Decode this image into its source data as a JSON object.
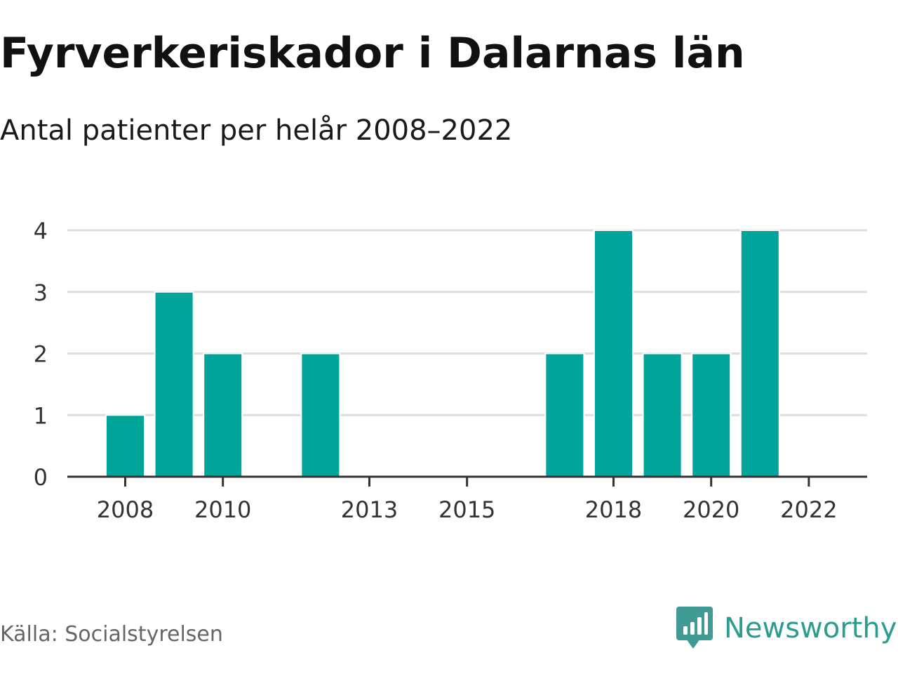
{
  "title": "Fyrverkeriskador i Dalarnas län",
  "subtitle": "Antal patienter per helår 2008–2022",
  "source": "Källa: Socialstyrelsen",
  "brand": {
    "name": "Newsworthy",
    "icon": "newsworthy-logo-icon",
    "color": "#2a9d8f"
  },
  "colors": {
    "bar": "#00a499",
    "grid": "#dddddd",
    "axis": "#333333"
  },
  "chart_data": {
    "type": "bar",
    "title": "Fyrverkeriskador i Dalarnas län",
    "subtitle": "Antal patienter per helår 2008–2022",
    "xlabel": "",
    "ylabel": "",
    "x": [
      2008,
      2009,
      2010,
      2011,
      2012,
      2013,
      2014,
      2015,
      2016,
      2017,
      2018,
      2019,
      2020,
      2021,
      2022
    ],
    "values": [
      1,
      3,
      2,
      0,
      2,
      0,
      0,
      0,
      0,
      2,
      4,
      2,
      2,
      4,
      0
    ],
    "xlim": [
      2008,
      2022
    ],
    "ylim": [
      0,
      4
    ],
    "y_ticks": [
      0,
      1,
      2,
      3,
      4
    ],
    "x_ticks": [
      2008,
      2010,
      2013,
      2015,
      2018,
      2020,
      2022
    ],
    "grid": "horizontal",
    "legend": "none"
  }
}
